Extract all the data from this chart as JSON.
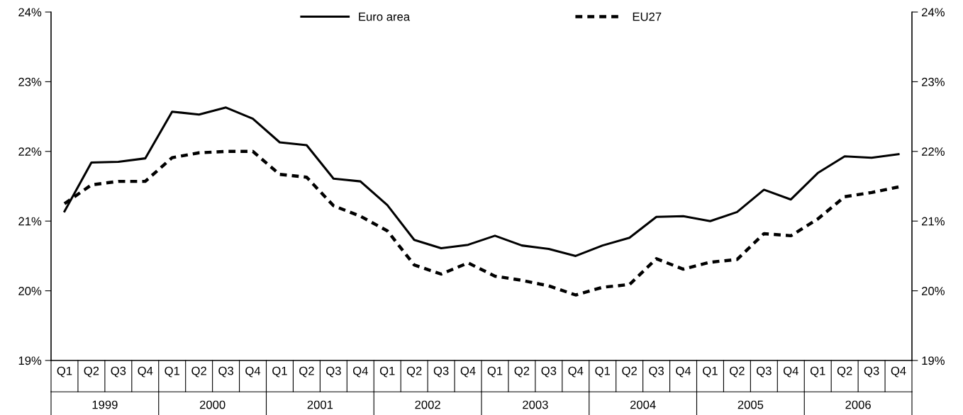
{
  "chart_data": {
    "type": "line",
    "categories": [
      "Q1",
      "Q2",
      "Q3",
      "Q4",
      "Q1",
      "Q2",
      "Q3",
      "Q4",
      "Q1",
      "Q2",
      "Q3",
      "Q4",
      "Q1",
      "Q2",
      "Q3",
      "Q4",
      "Q1",
      "Q2",
      "Q3",
      "Q4",
      "Q1",
      "Q2",
      "Q3",
      "Q4",
      "Q1",
      "Q2",
      "Q3",
      "Q4",
      "Q1",
      "Q2",
      "Q3",
      "Q4"
    ],
    "series": [
      {
        "name": "Euro area",
        "color": "#000000",
        "line_style": "solid",
        "values": [
          21.14,
          21.84,
          21.85,
          21.9,
          22.57,
          22.53,
          22.63,
          22.47,
          22.13,
          22.09,
          21.61,
          21.57,
          21.23,
          20.73,
          20.61,
          20.66,
          20.79,
          20.65,
          20.6,
          20.5,
          20.65,
          20.76,
          21.06,
          21.07,
          21.0,
          21.13,
          21.45,
          21.31,
          21.69,
          21.93,
          21.91,
          21.96
        ]
      },
      {
        "name": "EU27",
        "color": "#000000",
        "line_style": "dashed",
        "values": [
          21.25,
          21.52,
          21.57,
          21.57,
          21.91,
          21.98,
          22.0,
          22.0,
          21.67,
          21.63,
          21.22,
          21.07,
          20.86,
          20.37,
          20.24,
          20.4,
          20.21,
          20.15,
          20.07,
          19.94,
          20.05,
          20.09,
          20.46,
          20.31,
          20.41,
          20.45,
          20.82,
          20.79,
          21.03,
          21.35,
          21.41,
          21.49
        ]
      }
    ],
    "ylim": [
      19,
      24
    ],
    "yticks": [
      {
        "value": 19,
        "label": "19%"
      },
      {
        "value": 20,
        "label": "20%"
      },
      {
        "value": 21,
        "label": "21%"
      },
      {
        "value": 22,
        "label": "22%"
      },
      {
        "value": 23,
        "label": "23%"
      },
      {
        "value": 24,
        "label": "24%"
      }
    ],
    "y2lim": [
      19,
      24
    ],
    "y2ticks": [
      {
        "value": 19,
        "label": "19%"
      },
      {
        "value": 20,
        "label": "20%"
      },
      {
        "value": 21,
        "label": "21%"
      },
      {
        "value": 22,
        "label": "22%"
      },
      {
        "value": 23,
        "label": "23%"
      },
      {
        "value": 24,
        "label": "24%"
      }
    ],
    "annotations": [
      "1999",
      "2000",
      "2001",
      "2002",
      "2003",
      "2004",
      "2005",
      "2006"
    ],
    "legend": "top",
    "grid": false,
    "marker": "none"
  }
}
